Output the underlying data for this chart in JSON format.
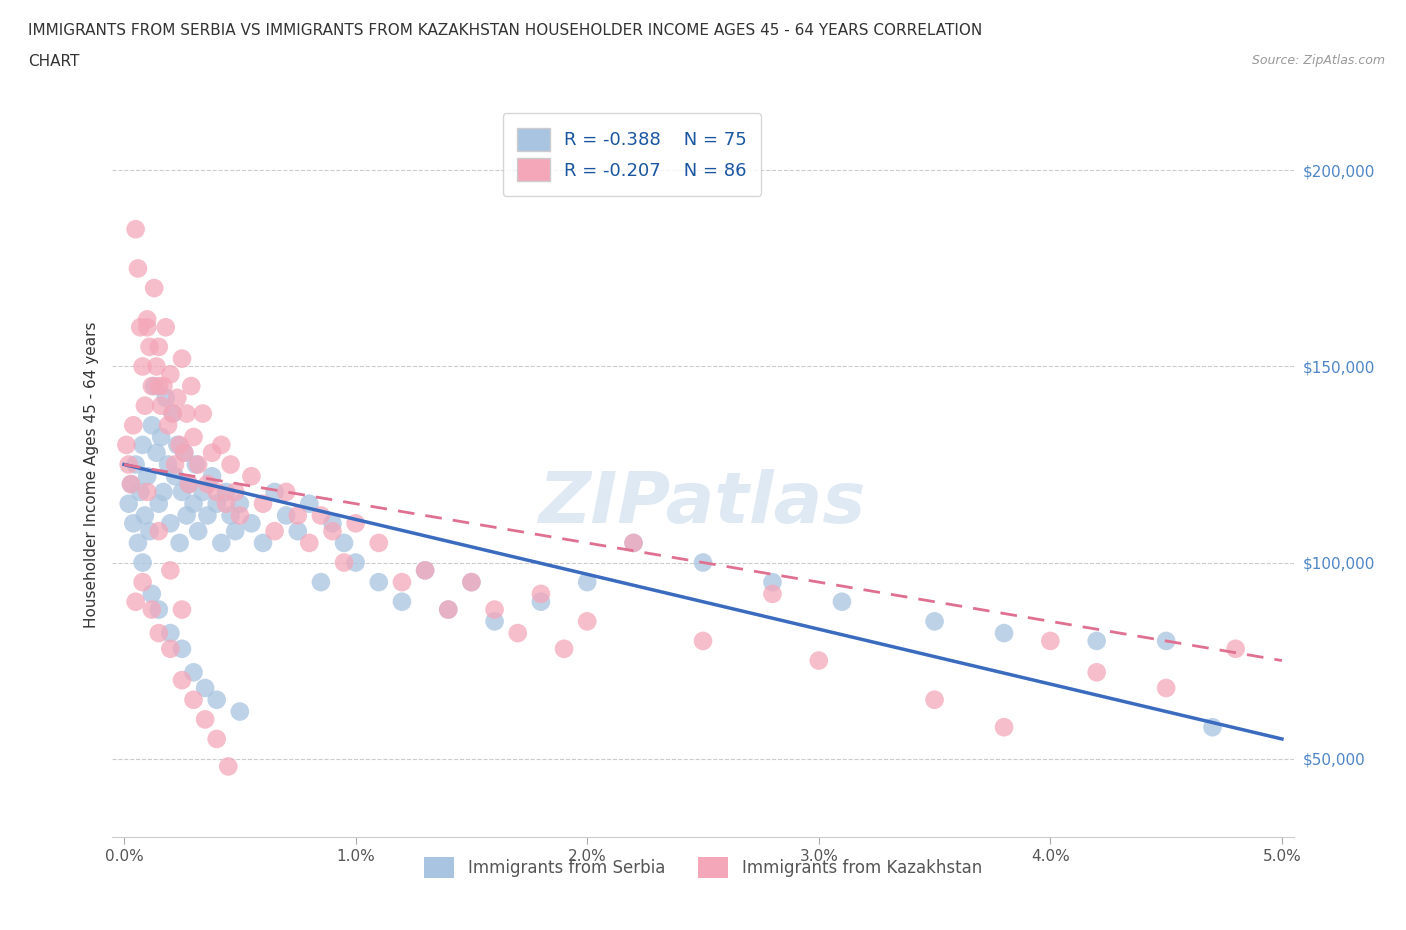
{
  "title_line1": "IMMIGRANTS FROM SERBIA VS IMMIGRANTS FROM KAZAKHSTAN HOUSEHOLDER INCOME AGES 45 - 64 YEARS CORRELATION",
  "title_line2": "CHART",
  "source": "Source: ZipAtlas.com",
  "ylabel": "Householder Income Ages 45 - 64 years",
  "ytick_labels": [
    "$50,000",
    "$100,000",
    "$150,000",
    "$200,000"
  ],
  "ytick_vals": [
    50000,
    100000,
    150000,
    200000
  ],
  "serbia_color": "#a8c4e0",
  "kazakhstan_color": "#f4a7b9",
  "serbia_line_color": "#3a6bbf",
  "kazakhstan_line_color": "#e07090",
  "serbia_R": -0.388,
  "serbia_N": 75,
  "kazakhstan_R": -0.207,
  "kazakhstan_N": 86,
  "legend_R_color": "#1a56a0",
  "watermark": "ZIPatlas",
  "serbia_x": [
    0.02,
    0.03,
    0.04,
    0.05,
    0.06,
    0.07,
    0.08,
    0.09,
    0.1,
    0.11,
    0.12,
    0.13,
    0.14,
    0.15,
    0.16,
    0.17,
    0.18,
    0.19,
    0.2,
    0.21,
    0.22,
    0.23,
    0.24,
    0.25,
    0.26,
    0.27,
    0.28,
    0.3,
    0.31,
    0.32,
    0.34,
    0.36,
    0.38,
    0.4,
    0.42,
    0.44,
    0.46,
    0.48,
    0.5,
    0.55,
    0.6,
    0.65,
    0.7,
    0.75,
    0.8,
    0.85,
    0.9,
    0.95,
    1.0,
    1.1,
    1.2,
    1.3,
    1.4,
    1.5,
    1.6,
    1.8,
    2.0,
    2.2,
    2.5,
    2.8,
    3.1,
    3.5,
    3.8,
    4.2,
    4.5,
    4.7,
    0.08,
    0.12,
    0.15,
    0.2,
    0.25,
    0.3,
    0.35,
    0.4,
    0.5
  ],
  "serbia_y": [
    115000,
    120000,
    110000,
    125000,
    105000,
    118000,
    130000,
    112000,
    122000,
    108000,
    135000,
    145000,
    128000,
    115000,
    132000,
    118000,
    142000,
    125000,
    110000,
    138000,
    122000,
    130000,
    105000,
    118000,
    128000,
    112000,
    120000,
    115000,
    125000,
    108000,
    118000,
    112000,
    122000,
    115000,
    105000,
    118000,
    112000,
    108000,
    115000,
    110000,
    105000,
    118000,
    112000,
    108000,
    115000,
    95000,
    110000,
    105000,
    100000,
    95000,
    90000,
    98000,
    88000,
    95000,
    85000,
    90000,
    95000,
    105000,
    100000,
    95000,
    90000,
    85000,
    82000,
    80000,
    80000,
    58000,
    100000,
    92000,
    88000,
    82000,
    78000,
    72000,
    68000,
    65000,
    62000
  ],
  "kazakhstan_x": [
    0.01,
    0.02,
    0.03,
    0.04,
    0.05,
    0.06,
    0.07,
    0.08,
    0.09,
    0.1,
    0.11,
    0.12,
    0.13,
    0.14,
    0.15,
    0.16,
    0.17,
    0.18,
    0.19,
    0.2,
    0.21,
    0.22,
    0.23,
    0.24,
    0.25,
    0.26,
    0.27,
    0.28,
    0.29,
    0.3,
    0.32,
    0.34,
    0.36,
    0.38,
    0.4,
    0.42,
    0.44,
    0.46,
    0.48,
    0.5,
    0.55,
    0.6,
    0.65,
    0.7,
    0.75,
    0.8,
    0.85,
    0.9,
    0.95,
    1.0,
    1.1,
    1.2,
    1.3,
    1.4,
    1.5,
    1.6,
    1.7,
    1.8,
    1.9,
    2.0,
    2.2,
    2.5,
    2.8,
    3.0,
    3.5,
    3.8,
    4.0,
    4.2,
    4.5,
    4.8,
    0.05,
    0.08,
    0.12,
    0.15,
    0.2,
    0.25,
    0.3,
    0.35,
    0.4,
    0.45,
    0.1,
    0.15,
    0.2,
    0.25,
    0.1,
    0.15
  ],
  "kazakhstan_y": [
    130000,
    125000,
    120000,
    135000,
    185000,
    175000,
    160000,
    150000,
    140000,
    160000,
    155000,
    145000,
    170000,
    150000,
    155000,
    140000,
    145000,
    160000,
    135000,
    148000,
    138000,
    125000,
    142000,
    130000,
    152000,
    128000,
    138000,
    120000,
    145000,
    132000,
    125000,
    138000,
    120000,
    128000,
    118000,
    130000,
    115000,
    125000,
    118000,
    112000,
    122000,
    115000,
    108000,
    118000,
    112000,
    105000,
    112000,
    108000,
    100000,
    110000,
    105000,
    95000,
    98000,
    88000,
    95000,
    88000,
    82000,
    92000,
    78000,
    85000,
    105000,
    80000,
    92000,
    75000,
    65000,
    58000,
    80000,
    72000,
    68000,
    78000,
    90000,
    95000,
    88000,
    82000,
    78000,
    70000,
    65000,
    60000,
    55000,
    48000,
    118000,
    108000,
    98000,
    88000,
    162000,
    145000
  ]
}
